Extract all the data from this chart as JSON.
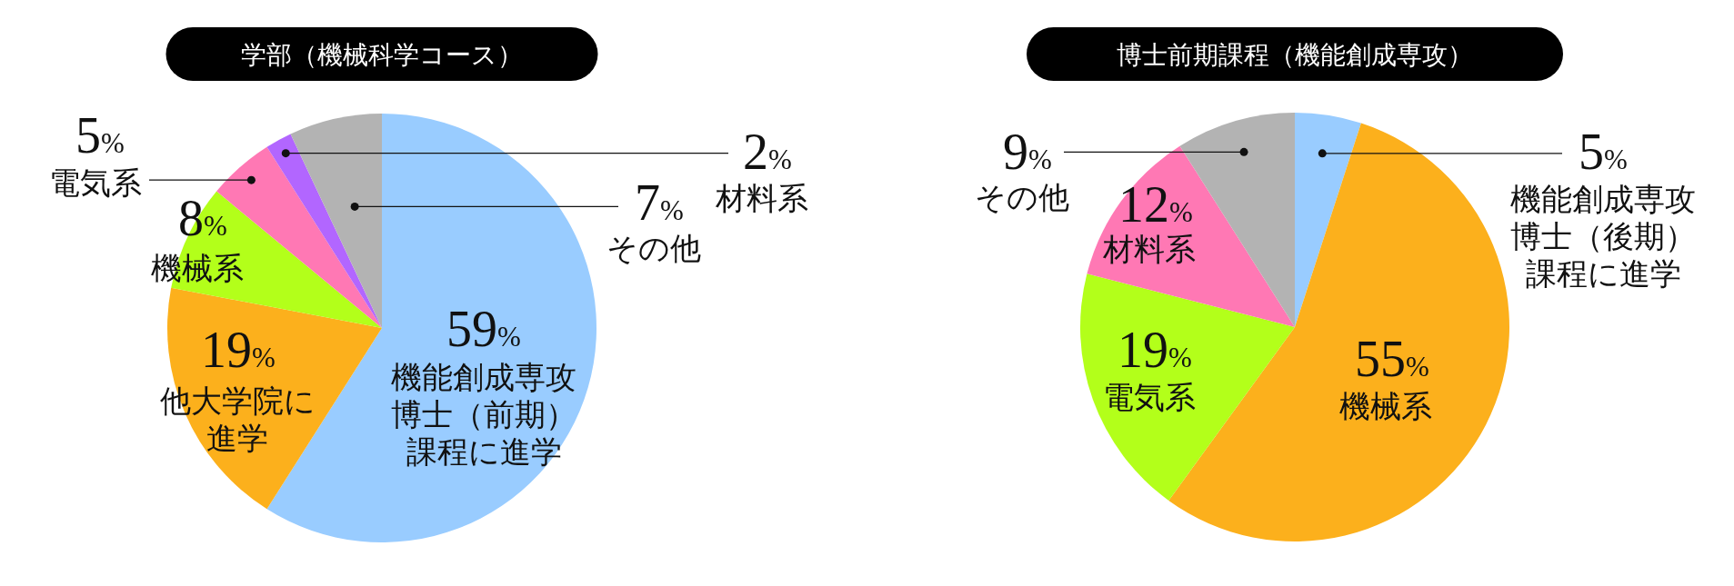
{
  "chart_data": [
    {
      "type": "pie",
      "title": "学部（機械科学コース）",
      "categories": [
        "機能創成専攻博士（前期）課程に進学",
        "他大学院に進学",
        "機械系",
        "電気系",
        "材料系",
        "その他"
      ],
      "values": [
        59,
        19,
        8,
        5,
        2,
        7
      ],
      "value_labels": [
        "59%",
        "19%",
        "8%",
        "5%",
        "2%",
        "7%"
      ],
      "colors": [
        "#99ccff",
        "#fcb01c",
        "#b3ff1a",
        "#ff78b4",
        "#b266ff",
        "#b3b3b3"
      ]
    },
    {
      "type": "pie",
      "title": "博士前期課程（機能創成専攻）",
      "categories": [
        "機能創成専攻博士（後期）課程に進学",
        "機械系",
        "電気系",
        "材料系",
        "その他"
      ],
      "values": [
        5,
        55,
        19,
        12,
        9
      ],
      "value_labels": [
        "5%",
        "55%",
        "19%",
        "12%",
        "9%"
      ],
      "colors": [
        "#99ccff",
        "#fcb01c",
        "#b3ff1a",
        "#ff78b4",
        "#b3b3b3"
      ]
    }
  ]
}
